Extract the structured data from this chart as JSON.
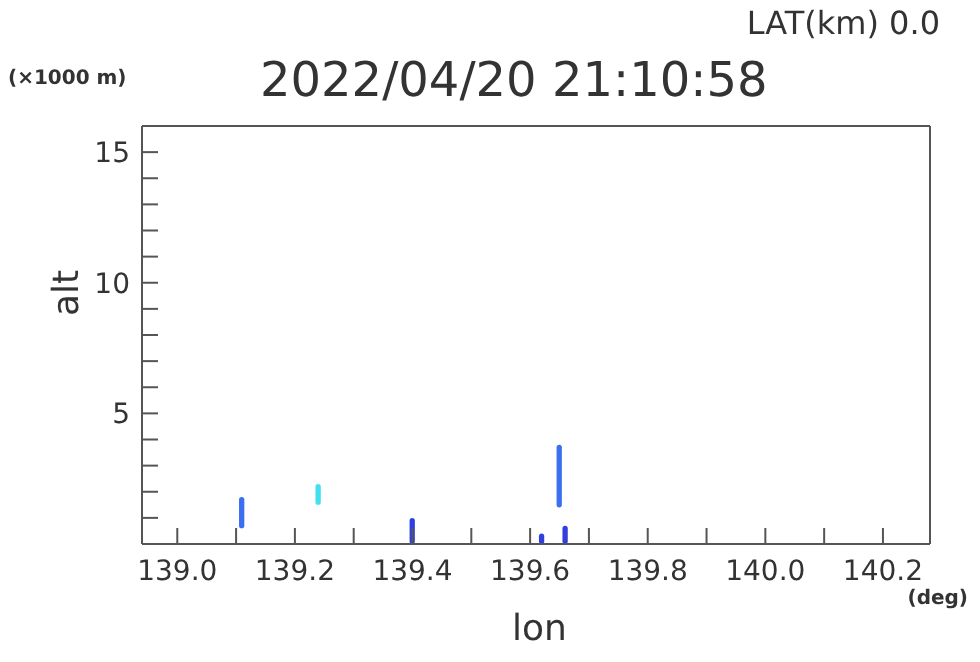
{
  "chart_data": {
    "type": "bar",
    "title": "2022/04/20 21:10:58",
    "xlabel": "lon",
    "ylabel": "alt",
    "annotations": [
      "LAT(km) 0.0",
      "(×1000 m)",
      "(deg)"
    ],
    "x": [
      139.11,
      139.24,
      139.4,
      139.62,
      139.65,
      139.66
    ],
    "base": [
      0.6,
      1.5,
      0,
      0,
      1.4,
      0
    ],
    "values": [
      1.2,
      0.8,
      1.0,
      0.4,
      2.4,
      0.7
    ],
    "colors": [
      "#3a6ff0",
      "#40e0f0",
      "#3040e0",
      "#3040e0",
      "#3a70f0",
      "#3040e0"
    ],
    "xlim": [
      138.94,
      140.28
    ],
    "xticks": [
      {
        "value": 139.0,
        "label": "139.0"
      },
      {
        "value": 139.1,
        "label": null
      },
      {
        "value": 139.2,
        "label": "139.2"
      },
      {
        "value": 139.3,
        "label": null
      },
      {
        "value": 139.4,
        "label": "139.4"
      },
      {
        "value": 139.5,
        "label": null
      },
      {
        "value": 139.6,
        "label": "139.6"
      },
      {
        "value": 139.7,
        "label": null
      },
      {
        "value": 139.8,
        "label": "139.8"
      },
      {
        "value": 139.9,
        "label": null
      },
      {
        "value": 140.0,
        "label": "140.0"
      },
      {
        "value": 140.1,
        "label": null
      },
      {
        "value": 140.2,
        "label": "140.2"
      }
    ],
    "ylim": [
      0,
      16
    ],
    "yticks": [
      {
        "value": 1,
        "label": null
      },
      {
        "value": 2,
        "label": null
      },
      {
        "value": 3,
        "label": null
      },
      {
        "value": 4,
        "label": null
      },
      5,
      {
        "value": 6,
        "label": null
      },
      {
        "value": 7,
        "label": null
      },
      {
        "value": 8,
        "label": null
      },
      {
        "value": 9,
        "label": null
      },
      10,
      {
        "value": 11,
        "label": null
      },
      {
        "value": 12,
        "label": null
      },
      {
        "value": 13,
        "label": null
      },
      {
        "value": 14,
        "label": null
      },
      15
    ]
  }
}
